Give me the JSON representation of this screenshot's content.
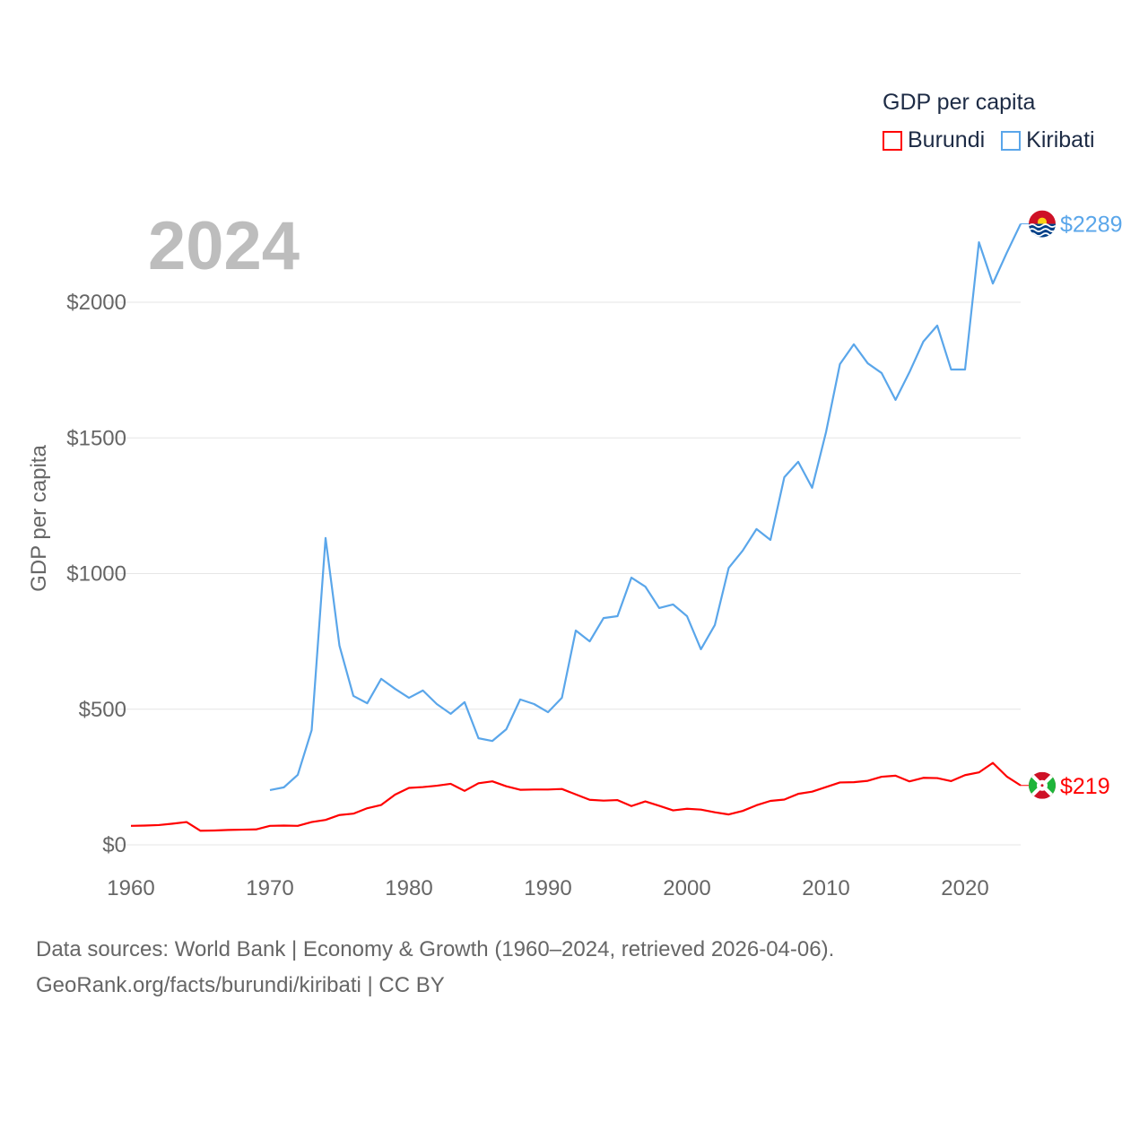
{
  "chart_data": {
    "type": "line",
    "title": "",
    "year_label": "2024",
    "xlabel": "",
    "ylabel": "GDP per capita",
    "xlim": [
      1960,
      2024
    ],
    "ylim": [
      0,
      2290
    ],
    "x_ticks": [
      1960,
      1970,
      1980,
      1990,
      2000,
      2010,
      2020
    ],
    "y_ticks": [
      0,
      500,
      1000,
      1500,
      2000
    ],
    "y_tick_labels": [
      "$0",
      "$500",
      "$1000",
      "$1500",
      "$2000"
    ],
    "grid": true,
    "legend": {
      "title": "GDP per capita",
      "placement": "top-right"
    },
    "series": [
      {
        "name": "Burundi",
        "color": "#ff0000",
        "start": 1960,
        "end_label": "$219",
        "values": [
          70,
          71,
          73,
          78,
          84,
          52,
          53,
          55,
          56,
          57,
          70,
          71,
          70,
          84,
          92,
          110,
          115,
          135,
          147,
          185,
          210,
          213,
          218,
          225,
          199,
          227,
          234,
          216,
          203,
          204,
          204,
          206,
          186,
          166,
          163,
          165,
          143,
          160,
          144,
          127,
          133,
          130,
          120,
          112,
          125,
          146,
          162,
          167,
          188,
          196,
          213,
          230,
          231,
          236,
          251,
          255,
          234,
          247,
          246,
          235,
          257,
          267,
          302,
          252,
          219
        ]
      },
      {
        "name": "Kiribati",
        "color": "#5aa6ea",
        "start": 1970,
        "end_label": "$2289",
        "values": [
          202,
          212,
          258,
          423,
          1131,
          734,
          549,
          522,
          612,
          575,
          542,
          569,
          519,
          483,
          526,
          393,
          383,
          426,
          536,
          519,
          489,
          542,
          790,
          750,
          836,
          843,
          985,
          952,
          873,
          886,
          843,
          721,
          810,
          1021,
          1084,
          1164,
          1124,
          1355,
          1412,
          1316,
          1521,
          1772,
          1845,
          1775,
          1739,
          1640,
          1742,
          1855,
          1914,
          1752,
          1752,
          2221,
          2069,
          2182,
          2289
        ]
      }
    ]
  },
  "footer": {
    "line1": "Data sources: World Bank | Economy & Growth (1960–2024, retrieved 2026-04-06).",
    "line2": "GeoRank.org/facts/burundi/kiribati | CC BY"
  }
}
